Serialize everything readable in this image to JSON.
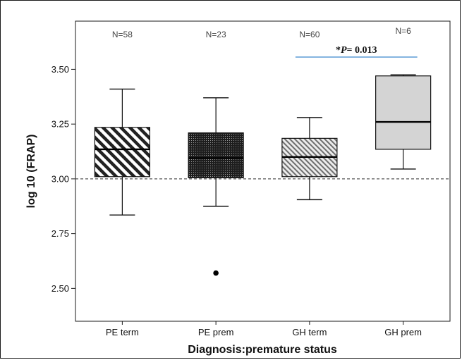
{
  "chart_data": {
    "type": "box",
    "xlabel": "Diagnosis:premature status",
    "ylabel": "log 10 (FRAP)",
    "ylim": [
      2.35,
      3.72
    ],
    "yticks": [
      "2.50",
      "2.75",
      "3.00",
      "3.25",
      "3.50"
    ],
    "reference_line": 3.0,
    "categories": [
      "PE term",
      "PE prem",
      "GH term",
      "GH prem"
    ],
    "n_labels": [
      "N=58",
      "N=23",
      "N=60",
      "N=6"
    ],
    "boxes": [
      {
        "category": "PE term",
        "whisker_low": 2.835,
        "q1": 3.01,
        "median": 3.135,
        "q3": 3.235,
        "whisker_high": 3.41,
        "outliers": [],
        "fill": "hatch-wide"
      },
      {
        "category": "PE prem",
        "whisker_low": 2.875,
        "q1": 3.005,
        "median": 3.095,
        "q3": 3.21,
        "whisker_high": 3.37,
        "outliers": [
          2.57
        ],
        "fill": "dense"
      },
      {
        "category": "GH term",
        "whisker_low": 2.905,
        "q1": 3.01,
        "median": 3.1,
        "q3": 3.185,
        "whisker_high": 3.28,
        "outliers": [],
        "fill": "hatch-fine"
      },
      {
        "category": "GH prem",
        "whisker_low": 3.045,
        "q1": 3.135,
        "median": 3.26,
        "q3": 3.47,
        "whisker_high": 3.475,
        "outliers": [],
        "fill": "solid-light"
      }
    ],
    "annotation": {
      "prefix": "*",
      "italic": "P",
      "suffix": "= 0.013",
      "from": "GH term",
      "to": "GH prem",
      "color": "#5b9bd5"
    },
    "grid": false
  }
}
